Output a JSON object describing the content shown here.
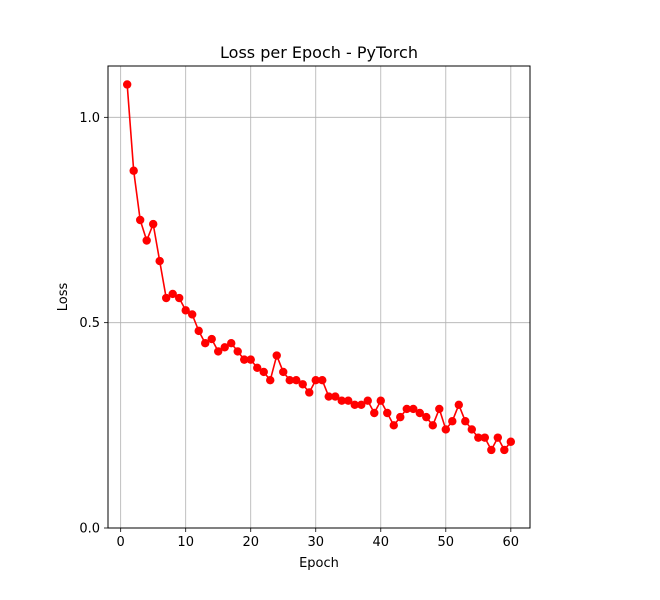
{
  "chart_data": {
    "type": "line",
    "title": "Loss per Epoch - PyTorch",
    "xlabel": "Epoch",
    "ylabel": "Loss",
    "xlim": [
      -1.95,
      62.95
    ],
    "ylim": [
      0,
      1.125
    ],
    "xticks": [
      0,
      10,
      20,
      30,
      40,
      50,
      60
    ],
    "yticks": [
      0.0,
      0.5,
      1.0
    ],
    "xtick_labels": [
      "0",
      "10",
      "20",
      "30",
      "40",
      "50",
      "60"
    ],
    "ytick_labels": [
      "0.0",
      "0.5",
      "1.0"
    ],
    "grid": true,
    "legend": false,
    "series": [
      {
        "color": "#ff0000",
        "marker": "circle",
        "x": [
          1,
          2,
          3,
          4,
          5,
          6,
          7,
          8,
          9,
          10,
          11,
          12,
          13,
          14,
          15,
          16,
          17,
          18,
          19,
          20,
          21,
          22,
          23,
          24,
          25,
          26,
          27,
          28,
          29,
          30,
          31,
          32,
          33,
          34,
          35,
          36,
          37,
          38,
          39,
          40,
          41,
          42,
          43,
          44,
          45,
          46,
          47,
          48,
          49,
          50,
          51,
          52,
          53,
          54,
          55,
          56,
          57,
          58,
          59,
          60
        ],
        "y": [
          1.08,
          0.87,
          0.75,
          0.7,
          0.74,
          0.65,
          0.56,
          0.57,
          0.56,
          0.53,
          0.52,
          0.48,
          0.45,
          0.46,
          0.43,
          0.44,
          0.45,
          0.43,
          0.41,
          0.41,
          0.39,
          0.38,
          0.36,
          0.42,
          0.38,
          0.36,
          0.36,
          0.35,
          0.33,
          0.36,
          0.36,
          0.32,
          0.32,
          0.31,
          0.31,
          0.3,
          0.3,
          0.31,
          0.28,
          0.31,
          0.28,
          0.25,
          0.27,
          0.29,
          0.29,
          0.28,
          0.27,
          0.25,
          0.29,
          0.24,
          0.26,
          0.3,
          0.26,
          0.24,
          0.22,
          0.22,
          0.19,
          0.22,
          0.19,
          0.21
        ]
      }
    ]
  }
}
